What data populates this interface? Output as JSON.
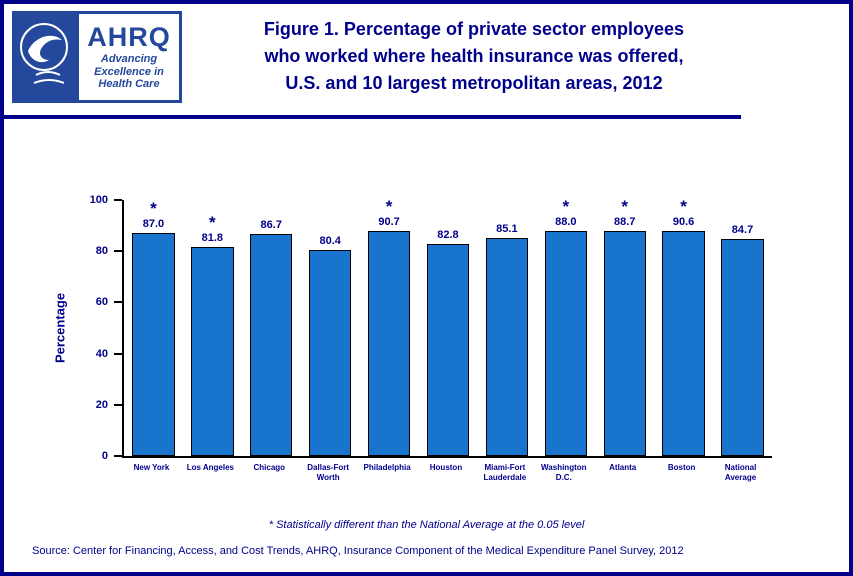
{
  "header": {
    "title_lines": [
      "Figure 1. Percentage of private sector employees",
      "who worked where health insurance was offered,",
      "U.S. and 10 largest metropolitan areas, 2012"
    ],
    "ahrq_logo": {
      "acronym": "AHRQ",
      "tagline_lines": [
        "Advancing",
        "Excellence in",
        "Health Care"
      ]
    }
  },
  "chart_data": {
    "type": "bar",
    "title": "Figure 1. Percentage of private sector employees who worked where health insurance was offered, U.S. and 10 largest metropolitan areas, 2012",
    "xlabel": "",
    "ylabel": "Percentage",
    "ylim": [
      0,
      100
    ],
    "yticks": [
      0,
      20,
      40,
      60,
      80,
      100
    ],
    "grid": false,
    "legend": "none",
    "bar_color": "#1874CD",
    "categories": [
      "New York",
      "Los Angeles",
      "Chicago",
      "Dallas-Fort\nWorth",
      "Philadelphia",
      "Houston",
      "Miami-Fort\nLauderdale",
      "Washington\nD.C.",
      "Atlanta",
      "Boston",
      "National\nAverage"
    ],
    "values": [
      87.0,
      81.8,
      86.7,
      80.4,
      90.7,
      82.8,
      85.1,
      88.0,
      88.7,
      90.6,
      84.7
    ],
    "starred": [
      true,
      true,
      false,
      false,
      true,
      false,
      false,
      true,
      true,
      true,
      false
    ],
    "star_symbol": "*"
  },
  "footnote": "* Statistically different than the National Average at the 0.05 level",
  "source": "Source: Center for Financing, Access, and Cost Trends, AHRQ, Insurance Component of the Medical Expenditure Panel Survey, 2012",
  "colors": {
    "navy_text": "#00008B",
    "bar_blue": "#1874CD",
    "logo_blue": "#24489C"
  }
}
